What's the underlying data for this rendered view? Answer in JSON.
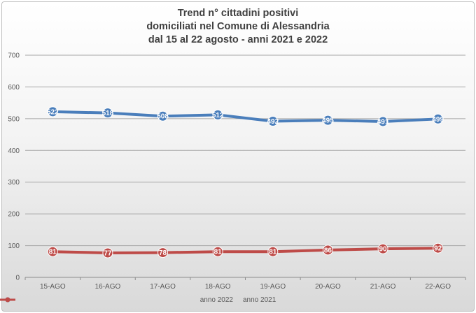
{
  "chart_data": {
    "type": "line",
    "title_lines": [
      "Trend n° cittadini positivi",
      "domiciliati nel Comune di Alessandria",
      "dal 15 al 22 agosto - anni 2021 e 2022"
    ],
    "categories": [
      "15-AGO",
      "16-AGO",
      "17-AGO",
      "18-AGO",
      "19-AGO",
      "20-AGO",
      "21-AGO",
      "22-AGO"
    ],
    "series": [
      {
        "name": "anno 2022",
        "color": "#4a7ebb",
        "values": [
          522,
          518,
          508,
          512,
          492,
          495,
          491,
          499
        ],
        "data_labels": [
          "522",
          "518",
          "508",
          "512",
          "492",
          "495",
          "491",
          "499"
        ]
      },
      {
        "name": "anno 2021",
        "color": "#be4b48",
        "values": [
          81,
          77,
          78,
          81,
          81,
          86,
          90,
          92
        ],
        "data_labels": [
          "81",
          "77",
          "78",
          "81",
          "81",
          "86",
          "90",
          "92"
        ]
      }
    ],
    "yticks": [
      "0",
      "100",
      "200",
      "300",
      "400",
      "500",
      "600",
      "700"
    ],
    "ylim": [
      0,
      700
    ],
    "grid": true,
    "legend_position": "bottom"
  }
}
